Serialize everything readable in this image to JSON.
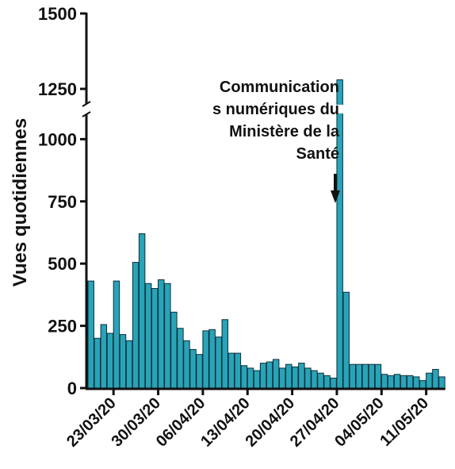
{
  "colors": {
    "bar_fill": "#29a3b8",
    "bar_stroke": "#0a2f38",
    "axis": "#111111"
  },
  "chart_data": {
    "type": "bar",
    "xlabel": "",
    "ylabel": "Vues quotidiennes",
    "y_axis_break": [
      1100,
      1200
    ],
    "ylim": [
      0,
      1500
    ],
    "y_ticks": [
      0,
      250,
      500,
      750,
      1000,
      1250,
      1500
    ],
    "y_tick_labels": [
      "0",
      "250",
      "500",
      "750",
      "1000",
      "1250",
      "1500"
    ],
    "x_tick_labels": [
      "23/03/20",
      "30/03/20",
      "06/04/20",
      "13/04/20",
      "20/04/20",
      "27/04/20",
      "04/05/20",
      "11/05/20"
    ],
    "x_tick_positions": [
      4,
      11,
      18,
      25,
      32,
      39,
      46,
      53
    ],
    "values": [
      430,
      200,
      255,
      220,
      430,
      215,
      190,
      505,
      620,
      420,
      400,
      435,
      420,
      305,
      240,
      190,
      155,
      135,
      230,
      235,
      205,
      275,
      140,
      140,
      90,
      80,
      70,
      100,
      105,
      115,
      80,
      95,
      85,
      100,
      80,
      70,
      60,
      50,
      40,
      1280,
      385,
      95,
      95,
      95,
      95,
      95,
      55,
      50,
      55,
      50,
      50,
      45,
      30,
      60,
      75,
      45
    ],
    "annotation": {
      "lines": [
        "Communication",
        "s numériques du",
        "Ministère de la",
        "Santé"
      ],
      "bar_index": 39
    }
  }
}
